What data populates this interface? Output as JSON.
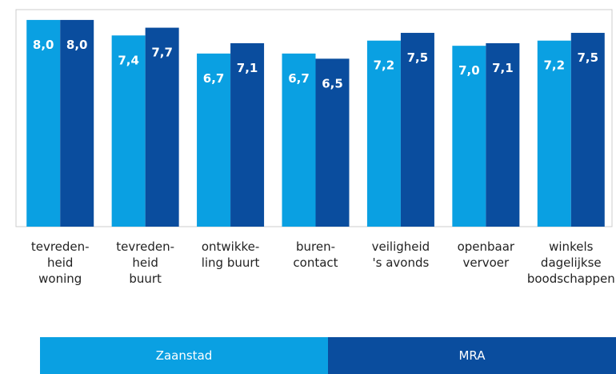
{
  "chart_data": {
    "type": "bar",
    "categories": [
      "tevreden-\nheid\nwoning",
      "tevreden-\nheid\nbuurt",
      "ontwikke-\nling buurt",
      "buren-\ncontact",
      "veiligheid\n's avonds",
      "openbaar\nvervoer",
      "winkels\ndagelijkse\nboodschappen"
    ],
    "series": [
      {
        "name": "Zaanstad",
        "color": "#0aa0e2",
        "values": [
          8.0,
          7.4,
          6.7,
          6.7,
          7.2,
          7.0,
          7.2
        ],
        "value_labels": [
          "8,0",
          "7,4",
          "6,7",
          "6,7",
          "7,2",
          "7,0",
          "7,2"
        ]
      },
      {
        "name": "MRA",
        "color": "#0a4d9e",
        "values": [
          8.0,
          7.7,
          7.1,
          6.5,
          7.5,
          7.1,
          7.5
        ],
        "value_labels": [
          "8,0",
          "7,7",
          "7,1",
          "6,5",
          "7,5",
          "7,1",
          "7,5"
        ]
      }
    ],
    "ylim": [
      0,
      8.4
    ],
    "legend": "bottom"
  }
}
